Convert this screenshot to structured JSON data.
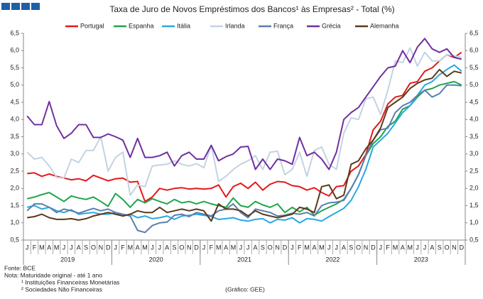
{
  "chart_data": {
    "type": "line",
    "title": "Taxa de Juro de Novos Empréstimos dos Bancos¹ às Empresas² - Total (%)",
    "categories": [
      "J",
      "F",
      "M",
      "A",
      "M",
      "J",
      "J",
      "A",
      "S",
      "O",
      "N",
      "D",
      "J",
      "F",
      "M",
      "A",
      "M",
      "J",
      "J",
      "A",
      "S",
      "O",
      "N",
      "D",
      "J",
      "F",
      "M",
      "A",
      "M",
      "J",
      "J",
      "A",
      "S",
      "O",
      "N",
      "D",
      "J",
      "F",
      "M",
      "A",
      "M",
      "J",
      "J",
      "A",
      "S",
      "O",
      "N",
      "D",
      "J",
      "F",
      "M",
      "A",
      "M",
      "J",
      "J",
      "A",
      "S",
      "O",
      "N",
      "D"
    ],
    "year_labels": [
      "2019",
      "2020",
      "2021",
      "2022",
      "2023"
    ],
    "ylim": [
      0.5,
      6.5
    ],
    "yticks": [
      {
        "value": 0.5,
        "label": "0,5"
      },
      {
        "value": 1,
        "label": "1,0"
      },
      {
        "value": 1.5,
        "label": "1,5"
      },
      {
        "value": 2,
        "label": "2,0"
      },
      {
        "value": 2.5,
        "label": "2,5"
      },
      {
        "value": 3,
        "label": "3,0"
      },
      {
        "value": 3.5,
        "label": "3,5"
      },
      {
        "value": 4,
        "label": "4,0"
      },
      {
        "value": 4.5,
        "label": "4,5"
      },
      {
        "value": 5,
        "label": "5,0"
      },
      {
        "value": 5.5,
        "label": "5,5"
      },
      {
        "value": 6,
        "label": "6,0"
      },
      {
        "value": 6.5,
        "label": "6,5"
      }
    ],
    "y2lim": [
      0.5,
      6.5
    ],
    "y2ticks": [
      {
        "value": 0.5,
        "label": "0,5"
      },
      {
        "value": 1,
        "label": "1,0"
      },
      {
        "value": 1.5,
        "label": "1,5"
      },
      {
        "value": 2,
        "label": "2,0"
      },
      {
        "value": 2.5,
        "label": "2,5"
      },
      {
        "value": 3,
        "label": "3,0"
      },
      {
        "value": 3.5,
        "label": "3,5"
      },
      {
        "value": 4,
        "label": "4,0"
      },
      {
        "value": 4.5,
        "label": "4,5"
      },
      {
        "value": 5,
        "label": "5,0"
      },
      {
        "value": 5.5,
        "label": "5,5"
      },
      {
        "value": 6,
        "label": "6,0"
      },
      {
        "value": 6.5,
        "label": "6,5"
      }
    ],
    "grid": false,
    "legend": "top",
    "series": [
      {
        "name": "Portugal",
        "color": "#e3191c",
        "values": [
          2.43,
          2.45,
          2.35,
          2.42,
          2.35,
          2.3,
          2.25,
          2.28,
          2.22,
          2.38,
          2.3,
          2.22,
          2.28,
          2.3,
          2.18,
          2.2,
          1.62,
          1.75,
          2.0,
          1.95,
          2.0,
          2.02,
          1.98,
          2.0,
          1.98,
          2.0,
          2.1,
          1.75,
          2.05,
          2.15,
          2.0,
          2.18,
          1.95,
          2.12,
          2.2,
          2.18,
          2.08,
          2.05,
          1.95,
          2.02,
          1.88,
          1.78,
          2.05,
          2.08,
          2.5,
          2.65,
          2.98,
          3.7,
          3.95,
          4.45,
          4.65,
          4.7,
          5.05,
          5.1,
          5.4,
          5.5,
          5.7,
          5.88,
          5.8,
          5.95
        ]
      },
      {
        "name": "Espanha",
        "color": "#1fa64a",
        "values": [
          1.7,
          1.75,
          1.82,
          1.88,
          1.75,
          1.62,
          1.78,
          1.72,
          1.68,
          1.75,
          1.62,
          1.48,
          1.85,
          1.68,
          1.45,
          1.68,
          1.58,
          1.7,
          1.62,
          1.55,
          1.68,
          1.58,
          1.62,
          1.55,
          1.62,
          1.55,
          1.5,
          1.45,
          1.72,
          1.5,
          1.45,
          1.62,
          1.52,
          1.45,
          1.55,
          1.3,
          1.45,
          1.32,
          1.45,
          1.22,
          1.35,
          1.45,
          1.55,
          1.68,
          2.0,
          2.4,
          2.95,
          3.3,
          3.5,
          3.8,
          3.95,
          4.3,
          4.4,
          4.65,
          4.85,
          4.9,
          5.0,
          5.05,
          5.1,
          5.0
        ]
      },
      {
        "name": "Itália",
        "color": "#29a8e0",
        "values": [
          1.45,
          1.5,
          1.4,
          1.45,
          1.35,
          1.3,
          1.38,
          1.25,
          1.28,
          1.3,
          1.25,
          1.25,
          1.3,
          1.2,
          1.25,
          1.15,
          1.2,
          1.12,
          1.15,
          1.2,
          1.1,
          1.2,
          1.22,
          1.25,
          1.22,
          1.18,
          1.1,
          1.12,
          1.15,
          1.08,
          1.05,
          1.1,
          1.12,
          1.0,
          1.1,
          1.08,
          1.15,
          1.0,
          1.12,
          1.1,
          1.05,
          1.18,
          1.3,
          1.42,
          1.65,
          2.05,
          2.55,
          3.2,
          3.4,
          3.6,
          3.9,
          4.2,
          4.4,
          4.7,
          5.0,
          5.1,
          5.3,
          5.45,
          5.58,
          5.4
        ]
      },
      {
        "name": "Irlanda",
        "color": "#c3d3e2",
        "values": [
          3.05,
          2.85,
          2.9,
          2.65,
          2.32,
          2.3,
          2.85,
          2.75,
          3.1,
          3.1,
          3.5,
          2.5,
          2.9,
          3.05,
          1.8,
          2.1,
          2.05,
          2.65,
          2.68,
          2.7,
          2.8,
          2.7,
          2.65,
          2.72,
          2.6,
          3.25,
          2.2,
          2.35,
          2.55,
          2.7,
          2.8,
          2.95,
          2.55,
          3.05,
          3.08,
          2.4,
          2.55,
          3.05,
          2.35,
          3.1,
          3.2,
          2.7,
          2.55,
          3.6,
          4.05,
          4.0,
          4.6,
          4.65,
          4.15,
          4.85,
          5.7,
          5.65,
          6.08,
          5.55,
          5.95,
          5.7,
          5.7,
          5.88,
          5.85,
          5.8
        ]
      },
      {
        "name": "França",
        "color": "#5b7db1",
        "values": [
          1.35,
          1.55,
          1.55,
          1.45,
          1.3,
          1.4,
          1.35,
          1.28,
          1.35,
          1.42,
          1.35,
          1.4,
          1.3,
          1.25,
          1.2,
          0.78,
          0.72,
          0.92,
          1.0,
          1.02,
          1.22,
          1.25,
          1.18,
          1.3,
          1.25,
          1.2,
          1.35,
          1.4,
          1.55,
          1.3,
          1.15,
          1.4,
          1.35,
          1.3,
          1.2,
          1.22,
          1.28,
          1.25,
          1.3,
          1.2,
          1.5,
          1.58,
          1.6,
          1.65,
          2.0,
          2.4,
          2.95,
          3.4,
          3.7,
          3.75,
          4.2,
          4.4,
          4.5,
          4.7,
          4.85,
          4.65,
          4.75,
          5.0,
          5.0,
          4.98
        ]
      },
      {
        "name": "Grécia",
        "color": "#7030a0",
        "values": [
          4.1,
          3.85,
          3.85,
          4.52,
          3.82,
          3.45,
          3.6,
          3.85,
          3.85,
          3.48,
          3.48,
          3.58,
          3.5,
          3.4,
          2.9,
          3.45,
          2.9,
          2.9,
          2.95,
          3.05,
          2.65,
          2.95,
          3.05,
          2.85,
          2.85,
          3.25,
          2.8,
          2.92,
          3.0,
          3.2,
          3.22,
          2.55,
          2.85,
          2.55,
          2.85,
          2.8,
          2.7,
          3.48,
          2.95,
          3.05,
          2.85,
          2.55,
          3.05,
          4.0,
          4.2,
          4.35,
          4.65,
          4.95,
          5.25,
          5.5,
          5.55,
          6.0,
          5.65,
          6.1,
          6.35,
          6.05,
          5.95,
          6.05,
          5.8,
          5.75
        ]
      },
      {
        "name": "Alemanha",
        "color": "#5a3a1a",
        "values": [
          1.15,
          1.18,
          1.25,
          1.15,
          1.1,
          1.1,
          1.12,
          1.08,
          1.12,
          1.2,
          1.25,
          1.3,
          1.25,
          1.2,
          1.25,
          1.35,
          1.3,
          1.3,
          1.45,
          1.3,
          1.35,
          1.4,
          1.35,
          1.4,
          1.35,
          1.05,
          1.55,
          1.4,
          1.4,
          1.35,
          1.2,
          1.35,
          1.25,
          1.2,
          1.15,
          1.2,
          1.25,
          1.45,
          1.4,
          1.3,
          2.05,
          2.1,
          1.7,
          1.8,
          2.7,
          2.8,
          3.15,
          3.4,
          3.75,
          4.35,
          4.5,
          4.65,
          4.9,
          5.05,
          5.15,
          5.2,
          5.45,
          5.25,
          5.4,
          5.35
        ]
      }
    ]
  },
  "notes": [
    "Fonte: BCE",
    "Nota: Maturidade original - até 1 ano",
    "¹ Instituições Financeiras Monetárias",
    "² Sociedades  Não Financeiras"
  ],
  "credit": "(Gráfico: GEE)"
}
